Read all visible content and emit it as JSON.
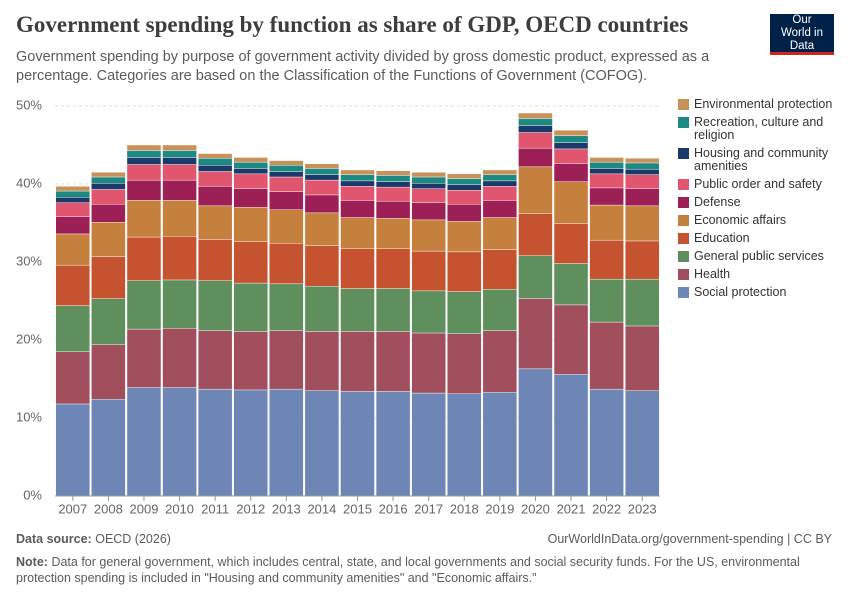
{
  "chart_data": {
    "type": "stacked-bar",
    "title": "Government spending by function as share of GDP, OECD countries",
    "subtitle": "Government spending by purpose of government activity divided by gross domestic product, expressed as a percentage. Categories are based on the Classification of the Functions of Government (COFOG).",
    "logo": "Our World in Data",
    "source_label": "Data source:",
    "source": "OECD (2026)",
    "url": "OurWorldInData.org/government-spending | CC BY",
    "note_label": "Note:",
    "note": "Data for general government, which includes central, state, and local governments and social security funds. For the US, environmental protection spending is included in \"Housing and community amenities\" and \"Economic affairs.\"",
    "categories": [
      "2007",
      "2008",
      "2009",
      "2010",
      "2011",
      "2012",
      "2013",
      "2014",
      "2015",
      "2016",
      "2017",
      "2018",
      "2019",
      "2020",
      "2021",
      "2022",
      "2023"
    ],
    "ylim": [
      0,
      50
    ],
    "yticks": [
      {
        "value": 0,
        "label": "0%"
      },
      {
        "value": 10,
        "label": "10%"
      },
      {
        "value": 20,
        "label": "20%"
      },
      {
        "value": 30,
        "label": "30%"
      },
      {
        "value": 40,
        "label": "40%"
      },
      {
        "value": 50,
        "label": "50%"
      }
    ],
    "grid": true,
    "legend": "right",
    "series": [
      {
        "name": "Social protection",
        "color": "#6d86b5",
        "values": [
          11.8,
          12.4,
          13.9,
          13.9,
          13.7,
          13.6,
          13.7,
          13.5,
          13.4,
          13.4,
          13.2,
          13.1,
          13.3,
          16.3,
          15.6,
          13.7,
          13.5
        ]
      },
      {
        "name": "Health",
        "color": "#a24f5d",
        "values": [
          6.7,
          7.0,
          7.5,
          7.6,
          7.5,
          7.5,
          7.5,
          7.6,
          7.7,
          7.7,
          7.7,
          7.7,
          7.9,
          9.0,
          8.9,
          8.6,
          8.3
        ]
      },
      {
        "name": "General public services",
        "color": "#5f8f5c",
        "values": [
          5.9,
          5.9,
          6.2,
          6.2,
          6.4,
          6.2,
          6.0,
          5.8,
          5.5,
          5.5,
          5.4,
          5.4,
          5.3,
          5.5,
          5.3,
          5.5,
          6.0
        ]
      },
      {
        "name": "Education",
        "color": "#c5532f",
        "values": [
          5.2,
          5.4,
          5.6,
          5.6,
          5.3,
          5.3,
          5.2,
          5.2,
          5.1,
          5.1,
          5.1,
          5.1,
          5.1,
          5.4,
          5.1,
          5.0,
          4.9
        ]
      },
      {
        "name": "Economic affairs",
        "color": "#c6803d",
        "values": [
          4.0,
          4.4,
          4.7,
          4.6,
          4.3,
          4.4,
          4.3,
          4.2,
          4.0,
          3.9,
          4.0,
          3.9,
          4.1,
          6.0,
          5.4,
          4.5,
          4.5
        ]
      },
      {
        "name": "Defense",
        "color": "#9c1f55",
        "values": [
          2.2,
          2.3,
          2.6,
          2.6,
          2.5,
          2.4,
          2.3,
          2.3,
          2.2,
          2.2,
          2.2,
          2.2,
          2.2,
          2.4,
          2.3,
          2.2,
          2.2
        ]
      },
      {
        "name": "Public order and safety",
        "color": "#e1566e",
        "values": [
          1.8,
          1.9,
          2.0,
          2.0,
          1.9,
          1.9,
          1.9,
          1.9,
          1.8,
          1.8,
          1.8,
          1.8,
          1.8,
          2.0,
          1.9,
          1.8,
          1.8
        ]
      },
      {
        "name": "Housing and community amenities",
        "color": "#1b3a69",
        "values": [
          0.7,
          0.8,
          0.9,
          0.9,
          0.8,
          0.7,
          0.7,
          0.7,
          0.7,
          0.7,
          0.7,
          0.7,
          0.7,
          0.9,
          0.8,
          0.7,
          0.7
        ]
      },
      {
        "name": "Recreation, culture and religion",
        "color": "#1c8a82",
        "values": [
          0.8,
          0.8,
          0.9,
          0.9,
          0.9,
          0.8,
          0.8,
          0.8,
          0.8,
          0.8,
          0.8,
          0.8,
          0.8,
          0.9,
          0.9,
          0.8,
          0.8
        ]
      },
      {
        "name": "Environmental protection",
        "color": "#c99158",
        "values": [
          0.6,
          0.6,
          0.7,
          0.7,
          0.6,
          0.6,
          0.6,
          0.6,
          0.6,
          0.6,
          0.6,
          0.6,
          0.6,
          0.7,
          0.7,
          0.6,
          0.6
        ]
      }
    ]
  }
}
